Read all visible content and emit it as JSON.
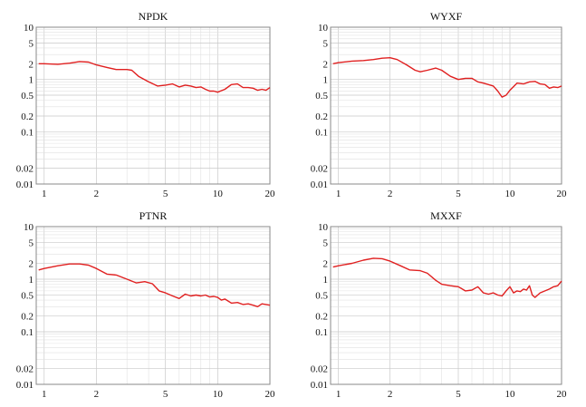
{
  "chart_data": [
    {
      "type": "line",
      "title": "NPDK",
      "xscale": "log",
      "yscale": "log",
      "xlim": [
        0.9,
        20
      ],
      "ylim": [
        0.01,
        10
      ],
      "xticks": [
        1,
        2,
        5,
        10,
        20
      ],
      "xtick_labels": [
        "1",
        "2",
        "5",
        "10",
        "20"
      ],
      "yticks": [
        0.01,
        0.02,
        0.1,
        0.2,
        0.5,
        1,
        2,
        5,
        10
      ],
      "ytick_labels": [
        "0.01",
        "0.02",
        "0.1",
        "0.2",
        "0.5",
        "1",
        "2",
        "5",
        "10"
      ],
      "grid": true,
      "series": [
        {
          "color": "#e02020",
          "x": [
            0.93,
            1,
            1.2,
            1.4,
            1.6,
            1.8,
            2.0,
            2.3,
            2.6,
            3.0,
            3.2,
            3.5,
            4.0,
            4.5,
            5.0,
            5.5,
            6.0,
            6.5,
            7.0,
            7.5,
            8.0,
            8.5,
            9.0,
            9.5,
            10,
            11,
            12,
            13,
            14,
            15,
            16,
            17,
            18,
            19,
            20
          ],
          "y": [
            2.0,
            2.0,
            1.95,
            2.05,
            2.2,
            2.15,
            1.9,
            1.7,
            1.55,
            1.55,
            1.5,
            1.15,
            0.9,
            0.75,
            0.78,
            0.82,
            0.72,
            0.78,
            0.75,
            0.7,
            0.72,
            0.65,
            0.6,
            0.6,
            0.57,
            0.65,
            0.8,
            0.82,
            0.7,
            0.7,
            0.68,
            0.62,
            0.65,
            0.62,
            0.7
          ]
        }
      ]
    },
    {
      "type": "line",
      "title": "WYXF",
      "xscale": "log",
      "yscale": "log",
      "xlim": [
        0.9,
        20
      ],
      "ylim": [
        0.01,
        10
      ],
      "xticks": [
        1,
        2,
        5,
        10,
        20
      ],
      "xtick_labels": [
        "1",
        "2",
        "5",
        "10",
        "20"
      ],
      "yticks": [
        0.01,
        0.02,
        0.1,
        0.2,
        0.5,
        1,
        2,
        5,
        10
      ],
      "ytick_labels": [
        "0.01",
        "0.02",
        "0.1",
        "0.2",
        "0.5",
        "1",
        "2",
        "5",
        "10"
      ],
      "grid": true,
      "series": [
        {
          "color": "#e02020",
          "x": [
            0.93,
            1,
            1.2,
            1.4,
            1.6,
            1.8,
            2.0,
            2.2,
            2.5,
            2.8,
            3.0,
            3.3,
            3.7,
            4.0,
            4.5,
            5.0,
            5.5,
            6.0,
            6.5,
            7.0,
            7.5,
            8.0,
            8.5,
            9.0,
            9.5,
            10,
            11,
            12,
            13,
            14,
            15,
            16,
            17,
            18,
            19,
            20
          ],
          "y": [
            2.0,
            2.1,
            2.25,
            2.3,
            2.4,
            2.55,
            2.6,
            2.4,
            1.9,
            1.5,
            1.4,
            1.5,
            1.65,
            1.5,
            1.15,
            1.0,
            1.05,
            1.05,
            0.9,
            0.85,
            0.8,
            0.75,
            0.6,
            0.46,
            0.5,
            0.62,
            0.85,
            0.82,
            0.9,
            0.92,
            0.82,
            0.8,
            0.68,
            0.72,
            0.7,
            0.75
          ]
        }
      ]
    },
    {
      "type": "line",
      "title": "PTNR",
      "xscale": "log",
      "yscale": "log",
      "xlim": [
        0.9,
        20
      ],
      "ylim": [
        0.01,
        10
      ],
      "xticks": [
        1,
        2,
        5,
        10,
        20
      ],
      "xtick_labels": [
        "1",
        "2",
        "5",
        "10",
        "20"
      ],
      "yticks": [
        0.01,
        0.02,
        0.1,
        0.2,
        0.5,
        1,
        2,
        5,
        10
      ],
      "ytick_labels": [
        "0.01",
        "0.02",
        "0.1",
        "0.2",
        "0.5",
        "1",
        "2",
        "5",
        "10"
      ],
      "grid": true,
      "series": [
        {
          "color": "#e02020",
          "x": [
            0.93,
            1,
            1.2,
            1.4,
            1.6,
            1.8,
            2.0,
            2.3,
            2.6,
            3.0,
            3.4,
            3.8,
            4.2,
            4.6,
            5.0,
            5.5,
            6.0,
            6.5,
            7.0,
            7.5,
            8.0,
            8.5,
            9.0,
            9.5,
            10,
            10.5,
            11,
            12,
            13,
            14,
            15,
            16,
            17,
            18,
            19,
            20
          ],
          "y": [
            1.5,
            1.6,
            1.8,
            1.95,
            1.95,
            1.85,
            1.6,
            1.25,
            1.2,
            1.0,
            0.85,
            0.9,
            0.82,
            0.6,
            0.55,
            0.48,
            0.43,
            0.52,
            0.48,
            0.5,
            0.48,
            0.5,
            0.46,
            0.47,
            0.45,
            0.4,
            0.42,
            0.35,
            0.36,
            0.33,
            0.34,
            0.32,
            0.3,
            0.34,
            0.33,
            0.32
          ]
        }
      ]
    },
    {
      "type": "line",
      "title": "MXXF",
      "xscale": "log",
      "yscale": "log",
      "xlim": [
        0.9,
        20
      ],
      "ylim": [
        0.01,
        10
      ],
      "xticks": [
        1,
        2,
        5,
        10,
        20
      ],
      "xtick_labels": [
        "1",
        "2",
        "5",
        "10",
        "20"
      ],
      "yticks": [
        0.01,
        0.02,
        0.1,
        0.2,
        0.5,
        1,
        2,
        5,
        10
      ],
      "ytick_labels": [
        "0.01",
        "0.02",
        "0.1",
        "0.2",
        "0.5",
        "1",
        "2",
        "5",
        "10"
      ],
      "grid": true,
      "series": [
        {
          "color": "#e02020",
          "x": [
            0.93,
            1,
            1.2,
            1.4,
            1.6,
            1.8,
            2.0,
            2.3,
            2.6,
            3.0,
            3.3,
            3.7,
            4.0,
            4.5,
            5.0,
            5.5,
            6.0,
            6.5,
            7.0,
            7.5,
            8.0,
            8.5,
            9.0,
            9.5,
            10,
            10.5,
            11,
            11.5,
            12,
            12.5,
            13,
            13.5,
            14,
            15,
            16,
            17,
            18,
            19,
            20
          ],
          "y": [
            1.7,
            1.8,
            2.0,
            2.3,
            2.5,
            2.45,
            2.2,
            1.8,
            1.5,
            1.45,
            1.3,
            0.95,
            0.8,
            0.75,
            0.72,
            0.6,
            0.62,
            0.72,
            0.55,
            0.52,
            0.55,
            0.5,
            0.48,
            0.6,
            0.72,
            0.55,
            0.6,
            0.58,
            0.65,
            0.62,
            0.75,
            0.5,
            0.45,
            0.55,
            0.6,
            0.65,
            0.72,
            0.75,
            0.92
          ]
        }
      ]
    }
  ]
}
